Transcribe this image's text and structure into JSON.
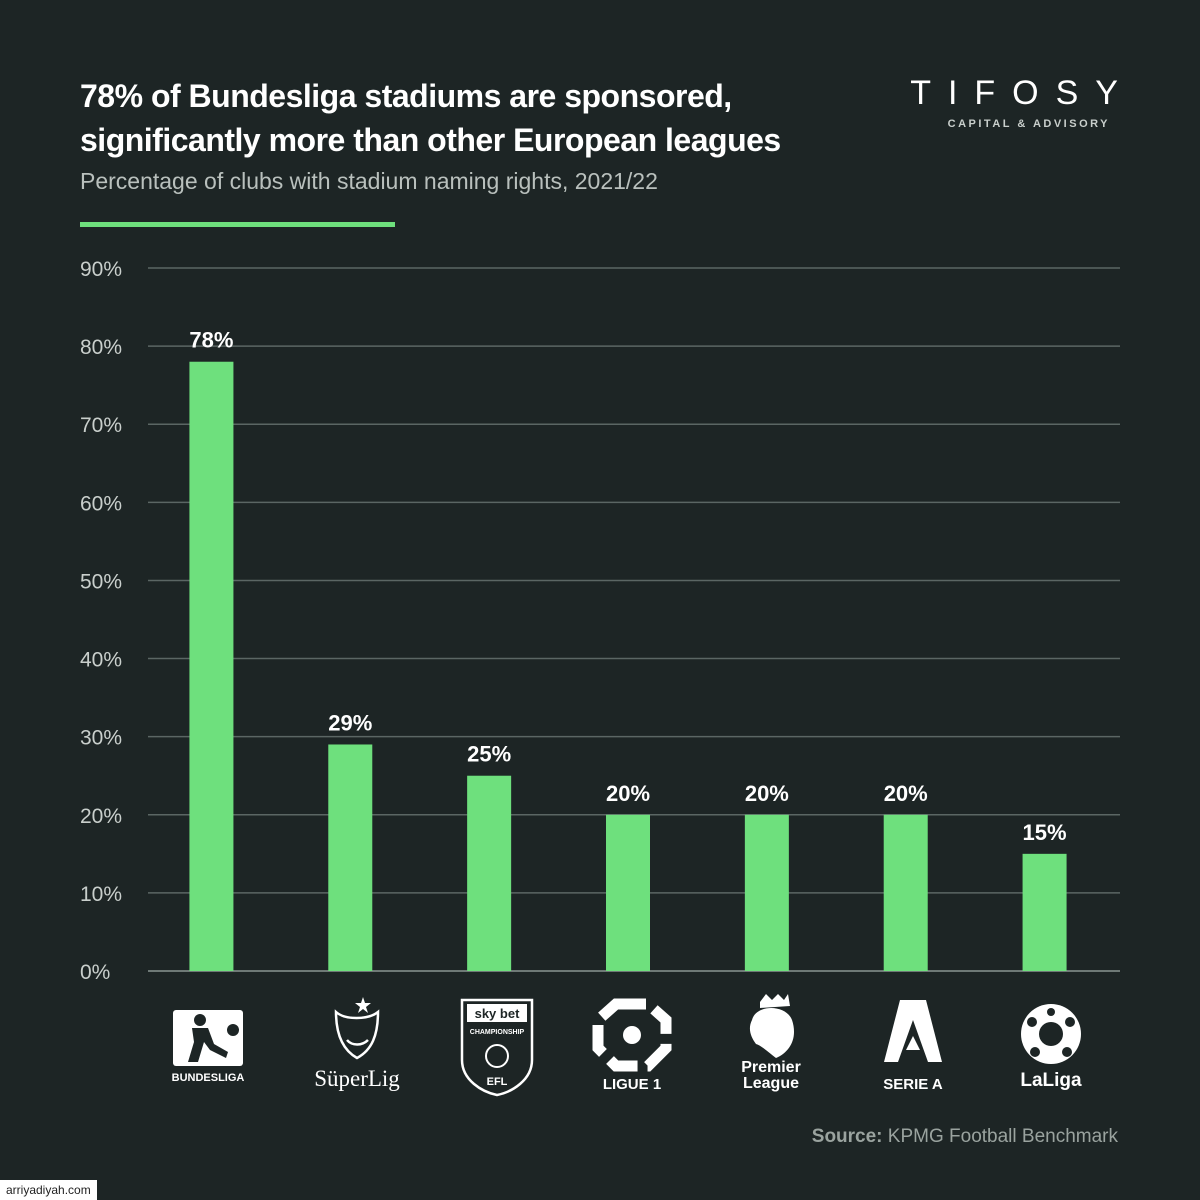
{
  "header": {
    "title": "78% of Bundesliga stadiums are sponsored, significantly more than other European leagues",
    "subtitle": "Percentage of clubs with stadium naming rights, 2021/22"
  },
  "brand": {
    "name": "TIFOSY",
    "tagline": "CAPITAL & ADVISORY"
  },
  "colors": {
    "background": "#1d2525",
    "bar": "#6ee07d",
    "grid": "#5b6664",
    "accent": "#6ee07d"
  },
  "chart_data": {
    "type": "bar",
    "categories": [
      "BUNDESLIGA",
      "SüperLig",
      "EFL",
      "LIGUE 1",
      "Premier League",
      "SERIE A",
      "LaLiga"
    ],
    "values": [
      78,
      29,
      25,
      20,
      20,
      20,
      15
    ],
    "value_labels": [
      "78%",
      "29%",
      "25%",
      "20%",
      "20%",
      "20%",
      "15%"
    ],
    "ylim": [
      0,
      90
    ],
    "y_ticks": [
      0,
      10,
      20,
      30,
      40,
      50,
      60,
      70,
      80,
      90
    ],
    "y_tick_labels": [
      "0%",
      "10%",
      "20%",
      "30%",
      "40%",
      "50%",
      "60%",
      "70%",
      "80%",
      "90%"
    ],
    "grid": true,
    "title": "78% of Bundesliga stadiums are sponsored, significantly more than other European leagues",
    "subtitle": "Percentage of clubs with stadium naming rights, 2021/22",
    "xlabel": "",
    "ylabel": ""
  },
  "logos": [
    {
      "icon": "bundesliga-logo-icon",
      "text": "BUNDESLIGA"
    },
    {
      "icon": "superlig-logo-icon",
      "text": "SüperLig"
    },
    {
      "icon": "efl-logo-icon",
      "text": "EFL",
      "badge_top": "sky bet",
      "badge_middle": "CHAMPIONSHIP"
    },
    {
      "icon": "ligue1-logo-icon",
      "text": "LIGUE 1"
    },
    {
      "icon": "premier-league-logo-icon",
      "text": "Premier",
      "text2": "League"
    },
    {
      "icon": "serie-a-logo-icon",
      "text": "SERIE A"
    },
    {
      "icon": "laliga-logo-icon",
      "text": "LaLiga"
    }
  ],
  "source": {
    "label": "Source:",
    "text": "KPMG Football Benchmark"
  },
  "watermark": "arriyadiyah.com"
}
